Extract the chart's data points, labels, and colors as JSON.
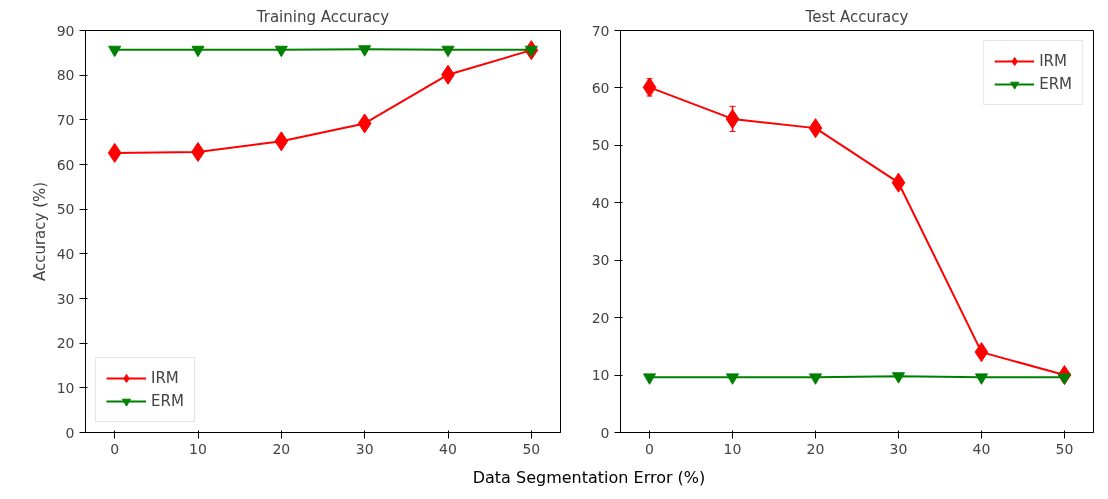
{
  "chart_data": [
    {
      "type": "line",
      "title": "Training Accuracy",
      "ylabel": "Accuracy (%)",
      "xlabel": "Data Segmentation Error (%)",
      "x": [
        0,
        10,
        20,
        30,
        40,
        50
      ],
      "xlim": [
        -3.5,
        53.5
      ],
      "xticks": [
        0,
        10,
        20,
        30,
        40,
        50
      ],
      "ylim": [
        0,
        90
      ],
      "yticks": [
        0,
        10,
        20,
        30,
        40,
        50,
        60,
        70,
        80,
        90
      ],
      "grid": false,
      "legend": "bottom left",
      "line_style": "solid",
      "series": [
        {
          "name": "IRM",
          "color": "#ff0000",
          "marker": "diamond",
          "values": [
            62.6,
            62.8,
            65.2,
            69.2,
            80.1,
            85.6
          ],
          "errors": [
            0.8,
            0.5,
            0.9,
            0.6,
            0.7,
            null
          ]
        },
        {
          "name": "ERM",
          "color": "#008000",
          "marker": "triangle",
          "values": [
            85.7,
            85.7,
            85.7,
            85.8,
            85.7,
            85.7
          ],
          "errors": [
            0.2,
            0.2,
            0.2,
            0.2,
            0.2,
            0.2
          ]
        }
      ]
    },
    {
      "type": "line",
      "title": "Test Accuracy",
      "x": [
        0,
        10,
        20,
        30,
        40,
        50
      ],
      "xlim": [
        -3.5,
        53.5
      ],
      "xticks": [
        0,
        10,
        20,
        30,
        40,
        50
      ],
      "ylim": [
        0,
        70
      ],
      "yticks": [
        0,
        10,
        20,
        30,
        40,
        50,
        60,
        70
      ],
      "grid": false,
      "legend": "top right",
      "line_style": "solid",
      "series": [
        {
          "name": "IRM",
          "color": "#ff0000",
          "marker": "diamond",
          "values": [
            60.1,
            54.6,
            53.0,
            43.5,
            14.0,
            10.0
          ],
          "errors": [
            1.5,
            2.2,
            0.7,
            0.5,
            0.6,
            0.4
          ]
        },
        {
          "name": "ERM",
          "color": "#008000",
          "marker": "triangle",
          "values": [
            9.6,
            9.6,
            9.6,
            9.8,
            9.6,
            9.6
          ],
          "errors": [
            0.2,
            0.2,
            0.2,
            0.2,
            0.2,
            0.2
          ]
        }
      ]
    }
  ]
}
